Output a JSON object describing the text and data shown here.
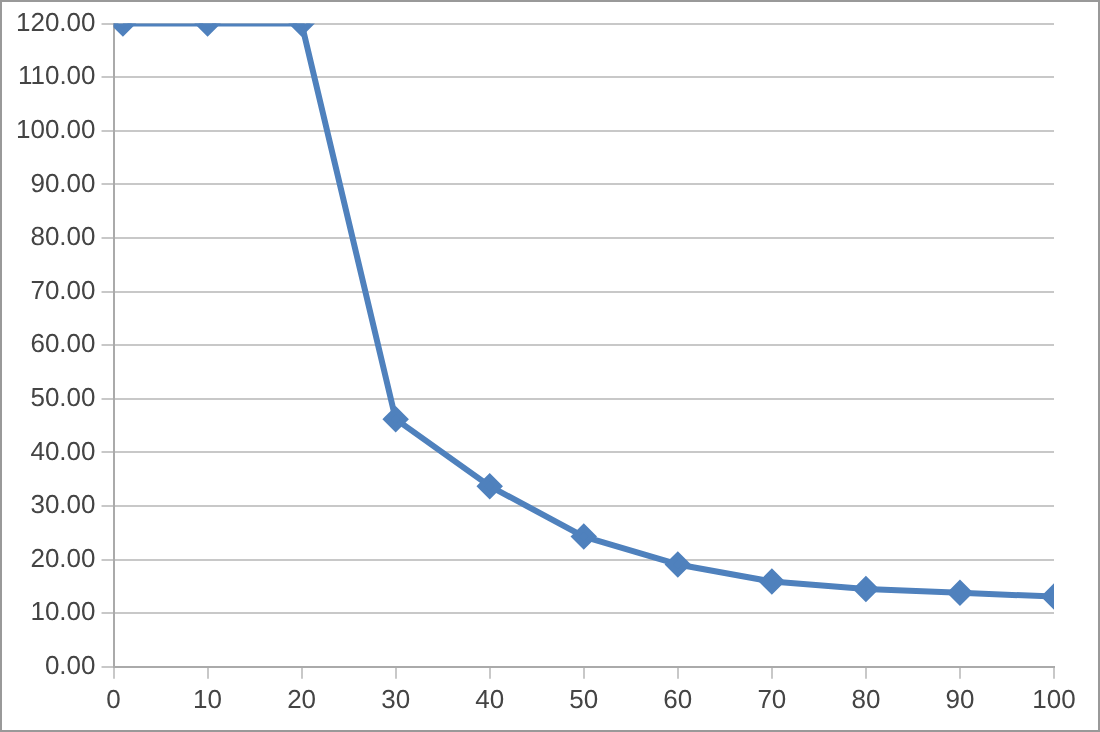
{
  "chart_data": {
    "type": "line",
    "x": [
      1,
      10,
      20,
      30,
      40,
      50,
      60,
      70,
      80,
      90,
      100
    ],
    "series": [
      {
        "color": "#4f81bd",
        "values": [
          120,
          120,
          120,
          46.2,
          33.7,
          24.3,
          19.1,
          15.9,
          14.5,
          13.8,
          13.1
        ]
      }
    ],
    "xlim": [
      0,
      100
    ],
    "xticks": [
      0,
      10,
      20,
      30,
      40,
      50,
      60,
      70,
      80,
      90,
      100
    ],
    "ylim": [
      0,
      120
    ],
    "yticks": [
      {
        "value": 0,
        "label": "0.00"
      },
      {
        "value": 10,
        "label": "10.00"
      },
      {
        "value": 20,
        "label": "20.00"
      },
      {
        "value": 30,
        "label": "30.00"
      },
      {
        "value": 40,
        "label": "40.00"
      },
      {
        "value": 50,
        "label": "50.00"
      },
      {
        "value": 60,
        "label": "60.00"
      },
      {
        "value": 70,
        "label": "70.00"
      },
      {
        "value": 80,
        "label": "80.00"
      },
      {
        "value": 90,
        "label": "90.00"
      },
      {
        "value": 100,
        "label": "100.00"
      },
      {
        "value": 110,
        "label": "110.00"
      },
      {
        "value": 120,
        "label": "120.00"
      }
    ],
    "grid": "y",
    "legend": false,
    "marker": "diamond",
    "line_style": "solid"
  }
}
